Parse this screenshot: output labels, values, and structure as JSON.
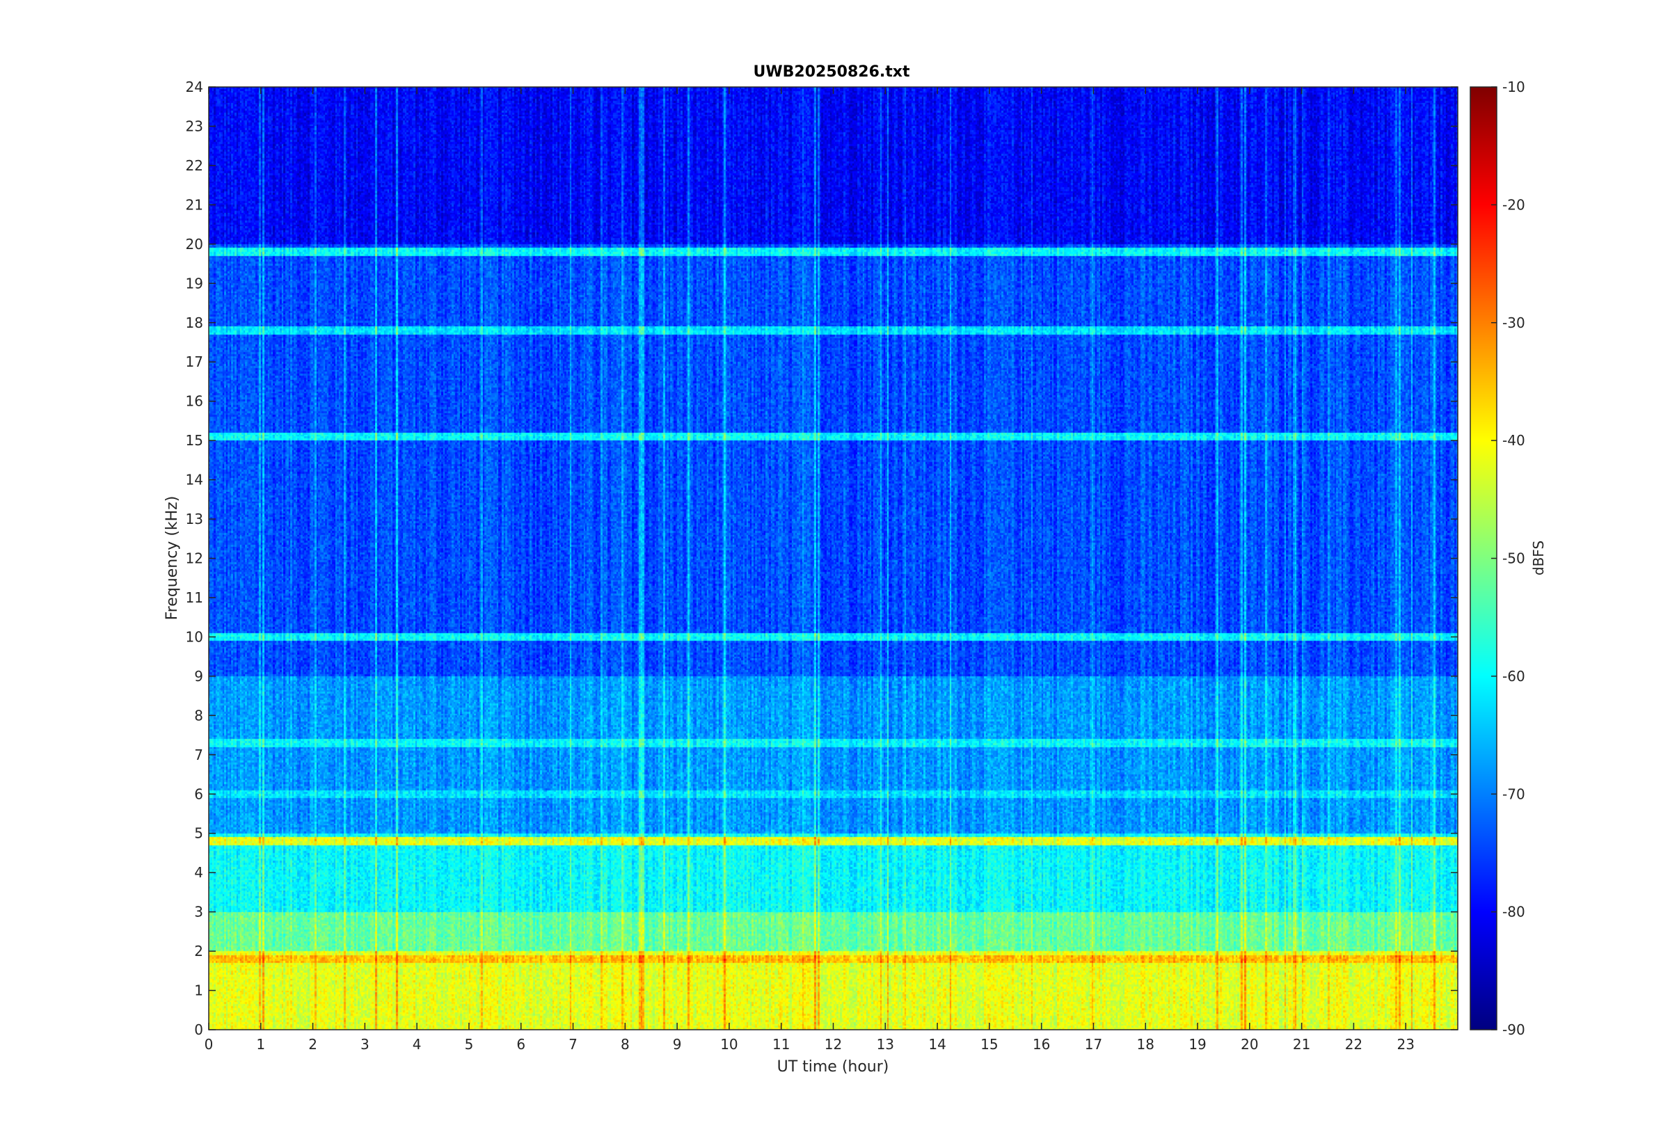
{
  "chart_data": {
    "type": "heatmap",
    "title": "UWB20250826.txt",
    "xlabel": "UT time (hour)",
    "ylabel": "Frequency (kHz)",
    "xlim": [
      0,
      24
    ],
    "ylim": [
      0,
      24
    ],
    "x_ticks": [
      0,
      1,
      2,
      3,
      4,
      5,
      6,
      7,
      8,
      9,
      10,
      11,
      12,
      13,
      14,
      15,
      16,
      17,
      18,
      19,
      20,
      21,
      22,
      23
    ],
    "y_ticks": [
      0,
      1,
      2,
      3,
      4,
      5,
      6,
      7,
      8,
      9,
      10,
      11,
      12,
      13,
      14,
      15,
      16,
      17,
      18,
      19,
      20,
      21,
      22,
      23,
      24
    ],
    "colorbar": {
      "label": "dBFS",
      "range": [
        -90,
        -10
      ],
      "ticks": [
        -10,
        -20,
        -30,
        -40,
        -50,
        -60,
        -70,
        -80,
        -90
      ],
      "colormap": "jet"
    },
    "approx_levels_dbfs": [
      {
        "band_khz": [
          0,
          2
        ],
        "level": -42
      },
      {
        "band_khz": [
          2,
          3
        ],
        "level": -52
      },
      {
        "band_khz": [
          3,
          5
        ],
        "level": -60
      },
      {
        "band_khz": [
          5,
          9
        ],
        "level": -68
      },
      {
        "band_khz": [
          9,
          20
        ],
        "level": -74
      },
      {
        "band_khz": [
          20,
          24
        ],
        "level": -80
      }
    ],
    "tones_dbfs": [
      {
        "freq_khz": 19.8,
        "level": -60
      },
      {
        "freq_khz": 4.8,
        "level": -42
      },
      {
        "freq_khz": 1.8,
        "level": -35
      },
      {
        "freq_khz": 7.3,
        "level": -60
      },
      {
        "freq_khz": 6.0,
        "level": -62
      },
      {
        "freq_khz": 17.8,
        "level": -62
      },
      {
        "freq_khz": 15.1,
        "level": -60
      },
      {
        "freq_khz": 10.0,
        "level": -60
      }
    ]
  },
  "colors": {
    "background": "#ffffff",
    "axis": "#262626",
    "title": "#000000"
  }
}
